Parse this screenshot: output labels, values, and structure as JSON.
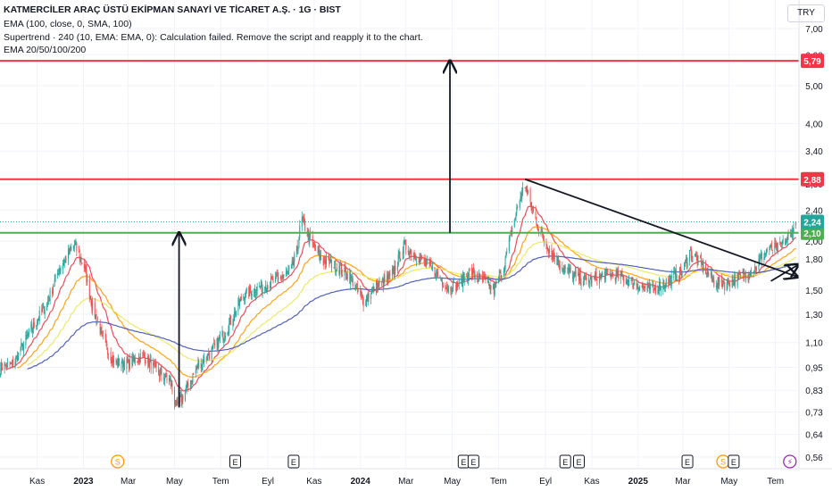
{
  "header": {
    "title": "KATMERCİLER ARAÇ ÜSTÜ EKİPMAN SANAYİ VE TİCARET A.Ş. · 1G · BIST",
    "indicators": [
      "EMA (100, close, 0, SMA, 100)",
      "Supertrend · 240 (10, EMA: EMA, 0): Calculation failed. Remove the script and reapply it to the chart.",
      "EMA 20/50/100/200"
    ],
    "currency": "TRY"
  },
  "colors": {
    "bull": "#26a69a",
    "bear": "#ef5350",
    "ema20": "#f23645",
    "ema50": "#ff9800",
    "ema100": "#e8e85a",
    "ema200": "#3f51b5",
    "resistance": "#f23645",
    "support": "#4caf50",
    "last_price": "#26a69a"
  },
  "chart_data": {
    "type": "candlestick",
    "title": "KATMERCİLER ARAÇ ÜSTÜ EKİPMAN SANAYİ VE TİCARET A.Ş. · 1G · BIST",
    "y_scale": "log",
    "ylim": [
      0.55,
      7.4
    ],
    "y_ticks": [
      "7,00",
      "6,00",
      "5,00",
      "4,00",
      "3,40",
      "2,80",
      "2,40",
      "2,00",
      "1,80",
      "1,50",
      "1,30",
      "1,10",
      "0,95",
      "0,83",
      "0,73",
      "0,64",
      "0,56"
    ],
    "y_tick_values": [
      7.0,
      6.0,
      5.0,
      4.0,
      3.4,
      2.8,
      2.4,
      2.0,
      1.8,
      1.5,
      1.3,
      1.1,
      0.95,
      0.83,
      0.73,
      0.64,
      0.56
    ],
    "x_ticks": [
      {
        "label": "Kas",
        "bold": false
      },
      {
        "label": "2023",
        "bold": true
      },
      {
        "label": "Mar",
        "bold": false
      },
      {
        "label": "May",
        "bold": false
      },
      {
        "label": "Tem",
        "bold": false
      },
      {
        "label": "Eyl",
        "bold": false
      },
      {
        "label": "Kas",
        "bold": false
      },
      {
        "label": "2024",
        "bold": true
      },
      {
        "label": "Mar",
        "bold": false
      },
      {
        "label": "May",
        "bold": false
      },
      {
        "label": "Tem",
        "bold": false
      },
      {
        "label": "Eyl",
        "bold": false
      },
      {
        "label": "Kas",
        "bold": false
      },
      {
        "label": "2025",
        "bold": true
      },
      {
        "label": "Mar",
        "bold": false
      },
      {
        "label": "May",
        "bold": false
      },
      {
        "label": "Tem",
        "bold": false
      }
    ],
    "x_tick_dates": [
      "2022-11-01",
      "2023-01-01",
      "2023-03-01",
      "2023-05-01",
      "2023-07-01",
      "2023-09-01",
      "2023-11-01",
      "2024-01-01",
      "2024-03-01",
      "2024-05-01",
      "2024-07-01",
      "2024-09-01",
      "2024-11-01",
      "2025-01-01",
      "2025-03-01",
      "2025-05-01",
      "2025-07-01"
    ],
    "x_range": [
      "2022-09-13",
      "2025-08-01"
    ],
    "price_path": [
      [
        "2022-09-13",
        0.95
      ],
      [
        "2022-10-01",
        0.97
      ],
      [
        "2022-10-20",
        1.15
      ],
      [
        "2022-11-15",
        1.4
      ],
      [
        "2022-12-01",
        1.72
      ],
      [
        "2022-12-20",
        1.95
      ],
      [
        "2023-01-02",
        1.72
      ],
      [
        "2023-01-12",
        1.38
      ],
      [
        "2023-01-25",
        1.15
      ],
      [
        "2023-02-10",
        0.98
      ],
      [
        "2023-03-01",
        0.97
      ],
      [
        "2023-03-20",
        1.02
      ],
      [
        "2023-04-10",
        0.92
      ],
      [
        "2023-04-25",
        0.88
      ],
      [
        "2023-05-03",
        0.75
      ],
      [
        "2023-05-15",
        0.82
      ],
      [
        "2023-06-01",
        0.96
      ],
      [
        "2023-06-20",
        1.05
      ],
      [
        "2023-07-10",
        1.2
      ],
      [
        "2023-07-30",
        1.45
      ],
      [
        "2023-08-20",
        1.52
      ],
      [
        "2023-09-10",
        1.58
      ],
      [
        "2023-10-01",
        1.68
      ],
      [
        "2023-10-10",
        1.9
      ],
      [
        "2023-10-15",
        2.3
      ],
      [
        "2023-10-25",
        2.05
      ],
      [
        "2023-11-10",
        1.8
      ],
      [
        "2023-12-01",
        1.72
      ],
      [
        "2023-12-20",
        1.6
      ],
      [
        "2024-01-05",
        1.4
      ],
      [
        "2024-01-20",
        1.52
      ],
      [
        "2024-02-10",
        1.62
      ],
      [
        "2024-02-28",
        1.95
      ],
      [
        "2024-03-20",
        1.8
      ],
      [
        "2024-04-10",
        1.65
      ],
      [
        "2024-04-25",
        1.52
      ],
      [
        "2024-05-10",
        1.55
      ],
      [
        "2024-05-25",
        1.68
      ],
      [
        "2024-06-10",
        1.58
      ],
      [
        "2024-06-25",
        1.5
      ],
      [
        "2024-07-08",
        1.72
      ],
      [
        "2024-07-20",
        2.2
      ],
      [
        "2024-07-30",
        2.6
      ],
      [
        "2024-08-05",
        2.78
      ],
      [
        "2024-08-15",
        2.4
      ],
      [
        "2024-08-25",
        2.1
      ],
      [
        "2024-09-10",
        1.85
      ],
      [
        "2024-09-25",
        1.7
      ],
      [
        "2024-10-10",
        1.62
      ],
      [
        "2024-10-30",
        1.58
      ],
      [
        "2024-11-20",
        1.65
      ],
      [
        "2024-12-10",
        1.62
      ],
      [
        "2024-12-30",
        1.55
      ],
      [
        "2025-01-20",
        1.5
      ],
      [
        "2025-02-10",
        1.58
      ],
      [
        "2025-03-01",
        1.68
      ],
      [
        "2025-03-10",
        1.88
      ],
      [
        "2025-03-25",
        1.75
      ],
      [
        "2025-04-10",
        1.58
      ],
      [
        "2025-04-25",
        1.55
      ],
      [
        "2025-05-15",
        1.62
      ],
      [
        "2025-06-01",
        1.68
      ],
      [
        "2025-06-20",
        1.9
      ],
      [
        "2025-07-05",
        1.92
      ],
      [
        "2025-07-20",
        2.05
      ],
      [
        "2025-07-28",
        2.24
      ]
    ],
    "series": [
      {
        "name": "EMA 20",
        "color": "#f23645"
      },
      {
        "name": "EMA 50",
        "color": "#ff9800"
      },
      {
        "name": "EMA 100",
        "color": "#e8e85a"
      },
      {
        "name": "EMA 200",
        "color": "#3f51b5"
      }
    ],
    "horizontal_lines": [
      {
        "value": 5.79,
        "label": "5,79",
        "color": "#f23645"
      },
      {
        "value": 2.88,
        "label": "2,88",
        "color": "#f23645"
      },
      {
        "value": 2.1,
        "label": "2,10",
        "color": "#4caf50"
      }
    ],
    "last_price": {
      "value": 2.24,
      "label": "2,24"
    },
    "drawings": {
      "arrow_up_1": {
        "from": [
          "2023-05-07",
          0.75
        ],
        "to": [
          "2023-05-07",
          2.1
        ]
      },
      "arrow_up_2": {
        "from": [
          "2024-04-28",
          2.1
        ],
        "to": [
          "2024-04-28",
          5.79
        ]
      },
      "trendline_arrow": {
        "from": [
          "2024-08-05",
          2.88
        ],
        "to": [
          "2025-07-30",
          1.62
        ]
      },
      "small_arrow": {
        "from": [
          "2025-06-25",
          1.58
        ],
        "to": [
          "2025-07-31",
          1.74
        ]
      }
    },
    "events": [
      {
        "date": "2023-02-15",
        "label": "S",
        "type": "split"
      },
      {
        "date": "2023-07-20",
        "label": "E",
        "type": "earnings"
      },
      {
        "date": "2023-10-05",
        "label": "E",
        "type": "earnings"
      },
      {
        "date": "2024-05-16",
        "label": "E",
        "type": "earnings"
      },
      {
        "date": "2024-05-29",
        "label": "E",
        "type": "earnings"
      },
      {
        "date": "2024-09-27",
        "label": "E",
        "type": "earnings"
      },
      {
        "date": "2024-10-15",
        "label": "E",
        "type": "earnings"
      },
      {
        "date": "2025-03-07",
        "label": "E",
        "type": "earnings"
      },
      {
        "date": "2025-04-23",
        "label": "S",
        "type": "split"
      },
      {
        "date": "2025-05-07",
        "label": "E",
        "type": "earnings"
      },
      {
        "date": "2025-07-20",
        "label": "⚡",
        "type": "news"
      }
    ]
  }
}
